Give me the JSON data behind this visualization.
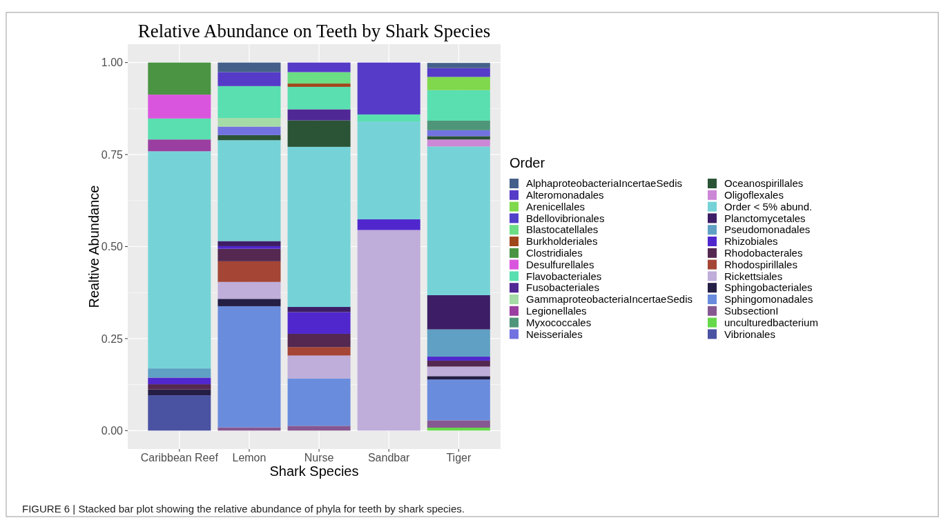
{
  "chart_data": {
    "type": "bar",
    "stacked": true,
    "title": "Relative Abundance on Teeth by Shark Species",
    "xlabel": "Shark Species",
    "ylabel": "Realtive Abundance",
    "legend_title": "Order",
    "legend": "right",
    "grid": true,
    "categories": [
      "Caribbean Reef",
      "Lemon",
      "Nurse",
      "Sandbar",
      "Tiger"
    ],
    "ylim": [
      -0.05,
      1.05
    ],
    "yticks": [
      {
        "value": 0,
        "label": "0.00"
      },
      {
        "value": 0.25,
        "label": "0.25"
      },
      {
        "value": 0.5,
        "label": "0.50"
      },
      {
        "value": 0.75,
        "label": "0.75"
      },
      {
        "value": 1,
        "label": "1.00"
      }
    ],
    "annotations": [
      "FIGURE 6 | Stacked bar plot showing the relative abundance of phyla for teeth by shark species."
    ],
    "series": [
      {
        "name": "Vibrionales",
        "color": "#4a52a2",
        "values": [
          0.096,
          null,
          null,
          null,
          null
        ]
      },
      {
        "name": "unculturedbacterium",
        "color": "#66d94b",
        "values": [
          null,
          null,
          null,
          null,
          0.008
        ]
      },
      {
        "name": "SubsectionI",
        "color": "#865892",
        "values": [
          null,
          0.009,
          0.013,
          null,
          0.02
        ]
      },
      {
        "name": "Sphingomonadales",
        "color": "#6a8cdd",
        "values": [
          null,
          0.329,
          0.129,
          null,
          0.111
        ]
      },
      {
        "name": "Sphingobacteriales",
        "color": "#251e45",
        "values": [
          0.016,
          0.02,
          null,
          null,
          0.009
        ]
      },
      {
        "name": "Rickettsiales",
        "color": "#bfadda",
        "values": [
          null,
          0.046,
          0.062,
          0.545,
          0.026
        ]
      },
      {
        "name": "Rhodospirillales",
        "color": "#a44536",
        "values": [
          null,
          0.056,
          0.023,
          null,
          null
        ]
      },
      {
        "name": "Rhodobacterales",
        "color": "#542850",
        "values": [
          0.014,
          0.034,
          0.036,
          null,
          0.016
        ]
      },
      {
        "name": "Rhizobiales",
        "color": "#5027cd",
        "values": [
          0.018,
          0.007,
          0.059,
          0.029,
          0.011
        ]
      },
      {
        "name": "Pseudomonadales",
        "color": "#5fa0c4",
        "values": [
          0.025,
          null,
          null,
          null,
          0.074
        ]
      },
      {
        "name": "Planctomycetales",
        "color": "#3d1e66",
        "values": [
          null,
          0.014,
          0.014,
          null,
          0.093
        ]
      },
      {
        "name": "Order < 5% abund.",
        "color": "#75d3d7",
        "values": [
          0.59,
          0.274,
          0.435,
          0.266,
          0.404
        ]
      },
      {
        "name": "Oligoflexales",
        "color": "#cc87d6",
        "values": [
          null,
          null,
          null,
          null,
          0.019
        ]
      },
      {
        "name": "Oceanospirillales",
        "color": "#2b5437",
        "values": [
          null,
          0.014,
          0.072,
          null,
          0.009
        ]
      },
      {
        "name": "Neisseriales",
        "color": "#7271e0",
        "values": [
          null,
          0.023,
          null,
          null,
          0.016
        ]
      },
      {
        "name": "Myxococcales",
        "color": "#4f957a",
        "values": [
          null,
          null,
          null,
          null,
          0.026
        ]
      },
      {
        "name": "Legionellales",
        "color": "#9a3fa1",
        "values": [
          0.032,
          null,
          null,
          null,
          null
        ]
      },
      {
        "name": "GammaproteobacteriaIncertaeSedis",
        "color": "#a5dba6",
        "values": [
          null,
          0.023,
          null,
          null,
          null
        ]
      },
      {
        "name": "Fusobacteriales",
        "color": "#502895",
        "values": [
          null,
          null,
          0.03,
          null,
          null
        ]
      },
      {
        "name": "Flavobacteriales",
        "color": "#5adfb0",
        "values": [
          0.057,
          0.087,
          0.061,
          0.019,
          0.083
        ]
      },
      {
        "name": "Desulfurellales",
        "color": "#da55dd",
        "values": [
          0.065,
          null,
          null,
          null,
          null
        ]
      },
      {
        "name": "Clostridiales",
        "color": "#4a9443",
        "values": [
          0.087,
          null,
          null,
          null,
          null
        ]
      },
      {
        "name": "Burkholderiales",
        "color": "#a0461c",
        "values": [
          null,
          null,
          0.009,
          null,
          null
        ]
      },
      {
        "name": "Blastocatellales",
        "color": "#6bdd84",
        "values": [
          null,
          null,
          0.031,
          null,
          null
        ]
      },
      {
        "name": "Bdellovibrionales",
        "color": "#4f3fc9",
        "values": [
          null,
          null,
          null,
          null,
          null
        ]
      },
      {
        "name": "Arenicellales",
        "color": "#80d84c",
        "values": [
          null,
          null,
          null,
          null,
          0.036
        ]
      },
      {
        "name": "Alteromonadales",
        "color": "#553bc8",
        "values": [
          null,
          0.038,
          0.026,
          0.141,
          0.024
        ]
      },
      {
        "name": "AlphaproteobacteriaIncertaeSedis",
        "color": "#44608a",
        "values": [
          null,
          0.026,
          null,
          null,
          0.014
        ]
      }
    ]
  }
}
